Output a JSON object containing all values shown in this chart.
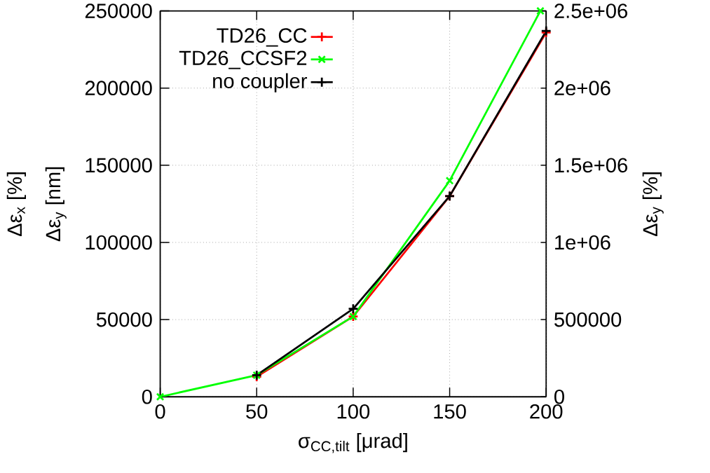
{
  "chart_data": {
    "type": "line",
    "series": [
      {
        "name": "TD26_CC",
        "color": "#ff0000",
        "marker": "cross",
        "x": [
          50,
          100,
          150,
          200
        ],
        "values": [
          13000,
          52000,
          130000,
          236000
        ]
      },
      {
        "name": "TD26_CCSF2",
        "color": "#00ff00",
        "marker": "cross",
        "x": [
          0,
          50,
          100,
          150,
          197
        ],
        "values": [
          0,
          14000,
          52000,
          140000,
          250000
        ]
      },
      {
        "name": "no coupler",
        "color": "#000000",
        "marker": "cross",
        "x": [
          50,
          100,
          150,
          200
        ],
        "values": [
          14000,
          57000,
          130000,
          237000
        ]
      }
    ],
    "xlabel": "σ$_{CC,tilt}$ [μrad]",
    "ylabel": "Δε$_{y}$ [nm]",
    "y2label": "Δε$_{y}$ [%]",
    "annotations": [
      "Δε$_{x}$ [%]"
    ],
    "xlim": [
      0,
      200
    ],
    "xticks": [
      0,
      50,
      100,
      150,
      200
    ],
    "ylim": [
      0,
      250000
    ],
    "yticks": [
      0,
      50000,
      100000,
      150000,
      200000,
      250000
    ],
    "y2lim": [
      0,
      2500000
    ],
    "y2ticks": [
      0,
      500000,
      {
        "value": 1000000,
        "label": "1e+06"
      },
      {
        "value": 1500000,
        "label": "1.5e+06"
      },
      {
        "value": 2000000,
        "label": "2e+06"
      },
      {
        "value": 2500000,
        "label": "2.5e+06"
      }
    ],
    "grid": true,
    "legend": "top left",
    "line_style": "solid"
  }
}
